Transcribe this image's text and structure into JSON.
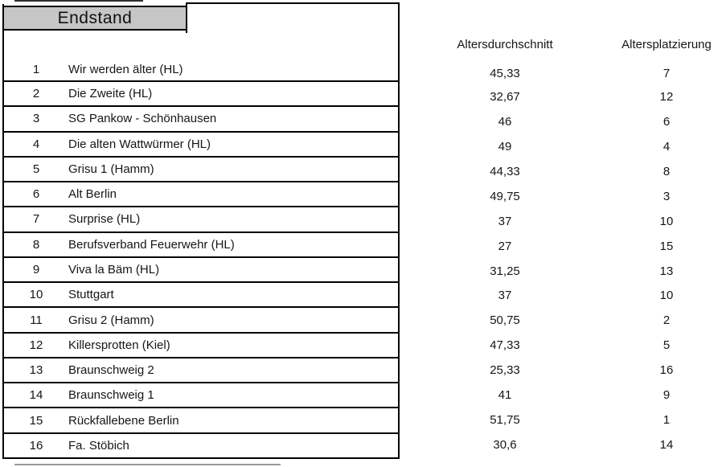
{
  "title": "Endstand",
  "columns": {
    "avg": "Altersdurchschnitt",
    "rank": "Altersplatzierung"
  },
  "rows": [
    {
      "pos": "1",
      "team": "Wir werden älter (HL)",
      "avg": "45,33",
      "rank": "7"
    },
    {
      "pos": "2",
      "team": "Die Zweite (HL)",
      "avg": "32,67",
      "rank": "12"
    },
    {
      "pos": "3",
      "team": "SG Pankow - Schönhausen",
      "avg": "46",
      "rank": "6"
    },
    {
      "pos": "4",
      "team": "Die alten Wattwürmer (HL)",
      "avg": "49",
      "rank": "4"
    },
    {
      "pos": "5",
      "team": "Grisu 1 (Hamm)",
      "avg": "44,33",
      "rank": "8"
    },
    {
      "pos": "6",
      "team": "Alt Berlin",
      "avg": "49,75",
      "rank": "3"
    },
    {
      "pos": "7",
      "team": "Surprise (HL)",
      "avg": "37",
      "rank": "10"
    },
    {
      "pos": "8",
      "team": "Berufsverband Feuerwehr (HL)",
      "avg": "27",
      "rank": "15"
    },
    {
      "pos": "9",
      "team": "Viva la Bäm (HL)",
      "avg": "31,25",
      "rank": "13"
    },
    {
      "pos": "10",
      "team": "Stuttgart",
      "avg": "37",
      "rank": "10"
    },
    {
      "pos": "11",
      "team": "Grisu 2 (Hamm)",
      "avg": "50,75",
      "rank": "2"
    },
    {
      "pos": "12",
      "team": "Killersprotten (Kiel)",
      "avg": "47,33",
      "rank": "5"
    },
    {
      "pos": "13",
      "team": "Braunschweig 2",
      "avg": "25,33",
      "rank": "16"
    },
    {
      "pos": "14",
      "team": "Braunschweig 1",
      "avg": "41",
      "rank": "9"
    },
    {
      "pos": "15",
      "team": "Rückfallebene Berlin",
      "avg": "51,75",
      "rank": "1"
    },
    {
      "pos": "16",
      "team": "Fa. Stöbich",
      "avg": "30,6",
      "rank": "14"
    }
  ],
  "colors": {
    "header_bg": "#c6c6c6",
    "border": "#000000"
  }
}
